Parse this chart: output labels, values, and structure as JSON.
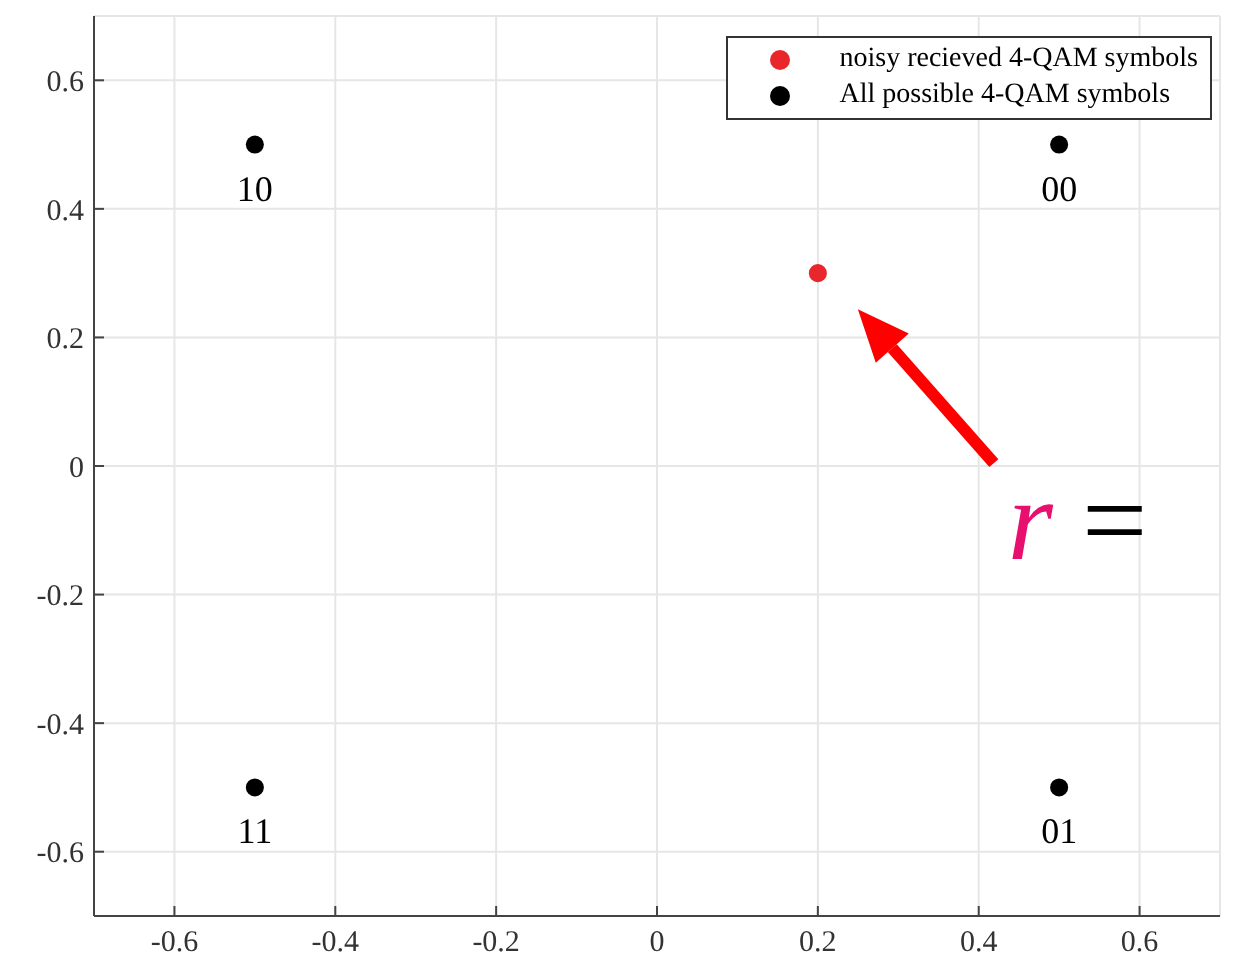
{
  "chart_data": {
    "type": "scatter",
    "xlim": [
      -0.7,
      0.7
    ],
    "ylim": [
      -0.7,
      0.7
    ],
    "xticks": [
      -0.6,
      -0.4,
      -0.2,
      0,
      0.2,
      0.4,
      0.6
    ],
    "yticks": [
      -0.6,
      -0.4,
      -0.2,
      0,
      0.2,
      0.4,
      0.6
    ],
    "series": [
      {
        "name": "noisy recieved 4-QAM symbols",
        "color": "#e8262b",
        "x": [
          0.2
        ],
        "values": [
          0.3
        ]
      },
      {
        "name": "All possible 4-QAM symbols",
        "color": "#000000",
        "x": [
          0.5,
          -0.5,
          -0.5,
          0.5
        ],
        "values": [
          0.5,
          0.5,
          -0.5,
          -0.5
        ]
      }
    ],
    "annotations": [
      "r =",
      "00",
      "10",
      "11",
      "01"
    ],
    "grid": true,
    "legend": "top right",
    "marker": "circle"
  }
}
